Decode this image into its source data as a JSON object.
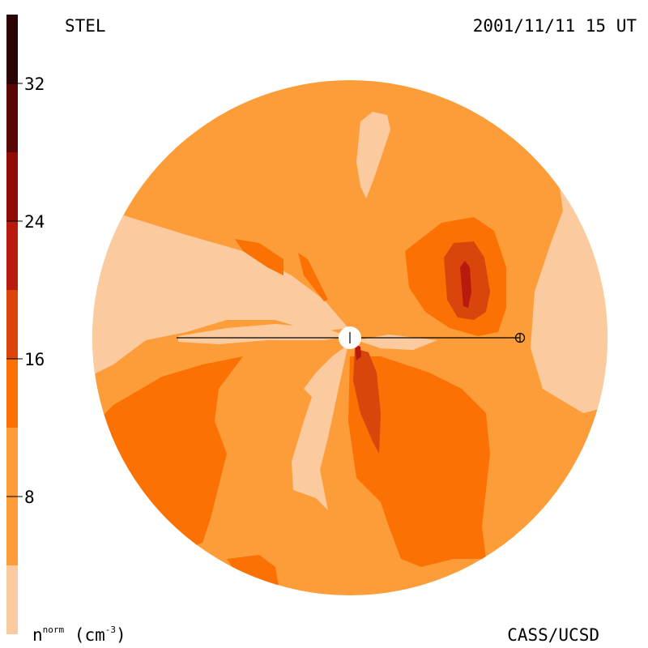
{
  "header": {
    "observatory": "STEL",
    "timestamp": "2001/11/11 15 UT"
  },
  "footer": {
    "unit_symbol": "n",
    "unit_superscript": "norm",
    "unit_rest": " (cm",
    "unit_exponent": "-3",
    "unit_close": ")",
    "credit": "CASS/UCSD"
  },
  "colorbar": {
    "tick_labels": [
      "32",
      "24",
      "16",
      "8"
    ],
    "tick_values": [
      32,
      24,
      16,
      8
    ],
    "range": [
      0,
      36
    ],
    "bands": [
      {
        "from": 0,
        "to": 4,
        "color": "#fbcb9f"
      },
      {
        "from": 4,
        "to": 12,
        "color": "#fc9d3a"
      },
      {
        "from": 12,
        "to": 16,
        "color": "#fb7104"
      },
      {
        "from": 16,
        "to": 20,
        "color": "#d9450a"
      },
      {
        "from": 20,
        "to": 24,
        "color": "#b91a0e"
      },
      {
        "from": 24,
        "to": 28,
        "color": "#8e0b08"
      },
      {
        "from": 28,
        "to": 32,
        "color": "#5a0704"
      },
      {
        "from": 32,
        "to": 36,
        "color": "#2a0402"
      }
    ]
  },
  "map": {
    "background_color": "#fc9d3a",
    "sun_symbol": "sun",
    "earth_symbol": "earth"
  }
}
